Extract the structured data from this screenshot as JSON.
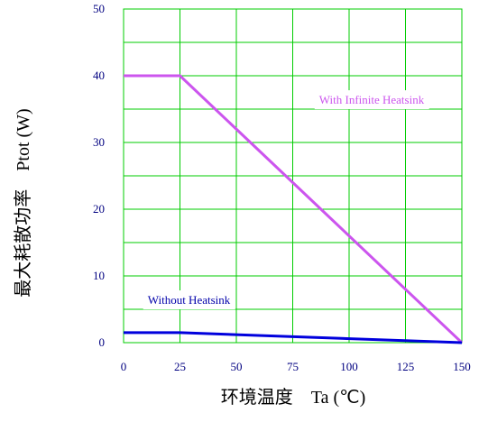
{
  "chart_data": {
    "type": "line",
    "title": "",
    "xlabel": "环境温度    Ta (℃)",
    "ylabel": "最大耗散功率    Ptot (W)",
    "xlim": [
      0,
      150
    ],
    "ylim": [
      0,
      50
    ],
    "xticks": [
      0,
      25,
      50,
      75,
      100,
      125,
      150
    ],
    "yticks": [
      0,
      10,
      20,
      30,
      40,
      50
    ],
    "xtick_labels": [
      "0",
      "25",
      "50",
      "75",
      "100",
      "125",
      "150"
    ],
    "ytick_labels": [
      "0",
      "10",
      "20",
      "30",
      "40",
      "50"
    ],
    "grid": true,
    "grid_color": "#00cc00",
    "x_grid_step": 25,
    "y_grid_step": 5,
    "series": [
      {
        "name": "With Infinite Heatsink",
        "color": "#cc55ee",
        "points": [
          [
            0,
            40
          ],
          [
            25,
            40
          ],
          [
            150,
            0
          ]
        ]
      },
      {
        "name": "Without Heatsink",
        "color": "#0000dd",
        "points": [
          [
            0,
            1.5
          ],
          [
            25,
            1.5
          ],
          [
            150,
            0
          ]
        ]
      }
    ],
    "annotations": [
      {
        "text": "With Infinite Heatsink",
        "x": 110,
        "y": 35.8,
        "color": "#cc55ee"
      },
      {
        "text": "Without Heatsink",
        "x": 29,
        "y": 5.8,
        "color": "#0000aa"
      }
    ]
  }
}
